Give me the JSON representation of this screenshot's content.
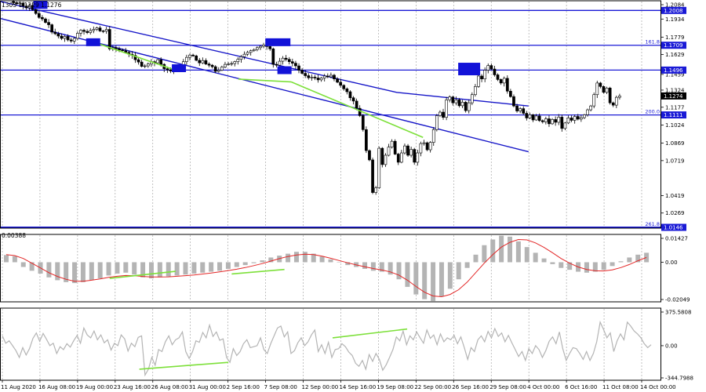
{
  "header": {
    "text": "1305 1.1229 1.1276"
  },
  "colors": {
    "level": "#1a1ad6",
    "channel": "#1616c8",
    "marker": "#1212d8",
    "divergence": "#7de03a",
    "signal": "#e32626",
    "histogram": "#b4b4b4",
    "cci": "#b4b4b4",
    "grid": "#9a9a9a",
    "candle": "#000000"
  },
  "chart_data": [
    {
      "type": "candlestick",
      "name": "price",
      "ylim": [
        1.0146,
        1.2084
      ],
      "y_ticks": [
        "1.2084",
        "1.2008",
        "1.1934",
        "1.1779",
        "1.1629",
        "1.1459",
        "1.1324",
        "1.1177",
        "1.1024",
        "1.0869",
        "1.0719",
        "1.0419",
        "1.0269"
      ],
      "x_ticks": [
        "11 Aug 2020",
        "16 Aug 08:00",
        "19 Aug 00:00",
        "23 Aug 16:00",
        "26 Aug 08:00",
        "31 Aug 00:00",
        "2 Sep 16:00",
        "7 Sep 08:00",
        "12 Sep 00:00",
        "14 Sep 16:00",
        "19 Sep 08:00",
        "22 Sep 00:00",
        "26 Sep 16:00",
        "29 Sep 08:00",
        "4 Oct 00:00",
        "6 Oct 16:00",
        "11 Oct 08:00",
        "14 Oct 00:00"
      ],
      "current_price": "1.1274",
      "levels": [
        {
          "value": 1.2008,
          "label": "1.2008",
          "fib": ""
        },
        {
          "value": 1.1709,
          "label": "1.1709",
          "fib": "161.8"
        },
        {
          "value": 1.1496,
          "label": "1.1496",
          "fib": ""
        },
        {
          "value": 1.1111,
          "label": "1.1111",
          "fib": "200.0"
        },
        {
          "value": 1.0146,
          "label": "1.0146",
          "fib": "261.8"
        }
      ],
      "path": [
        1.2084,
        1.2075,
        1.2065,
        1.2072,
        1.2045,
        1.203,
        1.2052,
        1.2015,
        1.1982,
        1.1948,
        1.1935,
        1.1905,
        1.1885,
        1.1822,
        1.1808,
        1.1788,
        1.1768,
        1.1785,
        1.1755,
        1.1745,
        1.1768,
        1.1812,
        1.1838,
        1.1828,
        1.1818,
        1.1835,
        1.1845,
        1.1858,
        1.1832,
        1.183,
        1.1845,
        1.1678,
        1.1688,
        1.1678,
        1.1668,
        1.1662,
        1.1648,
        1.1632,
        1.1622,
        1.1585,
        1.1565,
        1.1528,
        1.1532,
        1.1548,
        1.1568,
        1.1558,
        1.1585,
        1.1545,
        1.1508,
        1.1498,
        1.1488,
        1.1502,
        1.1515,
        1.1532,
        1.1568,
        1.1605,
        1.1625,
        1.1618,
        1.158,
        1.1558,
        1.1578,
        1.1548,
        1.1538,
        1.1525,
        1.1485,
        1.1495,
        1.1522,
        1.1545,
        1.1548,
        1.1552,
        1.1568,
        1.1588,
        1.161,
        1.1632,
        1.1648,
        1.1662,
        1.1672,
        1.1688,
        1.17,
        1.1712,
        1.1698,
        1.1678,
        1.1545,
        1.1538,
        1.1572,
        1.1598,
        1.1588,
        1.1568,
        1.1555,
        1.1532,
        1.1495,
        1.1468,
        1.1448,
        1.143,
        1.1435,
        1.1428,
        1.1412,
        1.1428,
        1.1445,
        1.1438,
        1.1452,
        1.142,
        1.1392,
        1.1365,
        1.1335,
        1.131,
        1.1258,
        1.123,
        1.1168,
        1.1105,
        1.0985,
        1.0805,
        1.0725,
        1.0445,
        1.0485,
        1.0825,
        1.0685,
        1.0765,
        1.0835,
        1.0885,
        1.0775,
        1.0705,
        1.0785,
        1.0845,
        1.0765,
        1.0815,
        1.0705,
        1.0785,
        1.0865,
        1.0872,
        1.0812,
        1.0875,
        1.0985,
        1.1105,
        1.1135,
        1.109,
        1.124,
        1.1265,
        1.1215,
        1.124,
        1.119,
        1.122,
        1.1148,
        1.1215,
        1.1285,
        1.1355,
        1.1445,
        1.142,
        1.1495,
        1.1535,
        1.1505,
        1.1455,
        1.1415,
        1.1385,
        1.1425,
        1.1315,
        1.1268,
        1.1188,
        1.1145,
        1.1165,
        1.1125,
        1.1085,
        1.1112,
        1.1068,
        1.1102,
        1.1062,
        1.1052,
        1.1078,
        1.1035,
        1.1072,
        1.1048,
        1.1092,
        1.0995,
        1.1042,
        1.1085,
        1.1065,
        1.1098,
        1.1075,
        1.1088,
        1.1112,
        1.1155,
        1.1188,
        1.1285,
        1.1385,
        1.1355,
        1.1305,
        1.1342,
        1.1215,
        1.1195,
        1.1262,
        1.1274
      ],
      "channel_upper": [
        [
          1.2084,
          0.0
        ],
        [
          1.1305,
          0.6
        ],
        [
          1.1188,
          0.8
        ]
      ],
      "channel_lower": [
        [
          1.1938,
          0.0
        ],
        [
          1.0795,
          0.8
        ]
      ],
      "divergence_price": [
        [
          1.1738,
          0.14
        ],
        [
          1.1485,
          0.27
        ],
        [
          1.1418,
          0.36
        ],
        [
          1.1395,
          0.44
        ],
        [
          1.0918,
          0.64
        ]
      ],
      "markers": [
        [
          1.2055,
          0.06
        ],
        [
          1.1735,
          0.14
        ],
        [
          1.1512,
          0.27
        ],
        [
          1.1735,
          0.42
        ],
        [
          1.1495,
          0.43
        ],
        [
          1.1505,
          0.71
        ]
      ]
    },
    {
      "type": "bar",
      "name": "macd",
      "ylim": [
        -0.02049,
        0.01427
      ],
      "y_ticks": [
        "0.01427",
        "0.00",
        "-0.02049"
      ],
      "value_readout": "0.00388",
      "histogram": [
        0.0038,
        0.0032,
        -0.0025,
        -0.0045,
        -0.006,
        -0.008,
        -0.0095,
        -0.0105,
        -0.011,
        -0.0105,
        -0.0095,
        -0.0085,
        -0.007,
        -0.006,
        -0.0055,
        -0.0065,
        -0.008,
        -0.0085,
        -0.008,
        -0.0075,
        -0.007,
        -0.0065,
        -0.006,
        -0.0055,
        -0.005,
        -0.0045,
        -0.0035,
        -0.0025,
        -0.0015,
        -0.0005,
        0.001,
        0.0025,
        0.0035,
        0.0045,
        0.0055,
        0.0055,
        0.0045,
        0.003,
        0.0015,
        0.0,
        -0.0015,
        -0.0025,
        -0.0035,
        -0.0045,
        -0.005,
        -0.0065,
        -0.009,
        -0.013,
        -0.017,
        -0.0195,
        -0.0205,
        -0.018,
        -0.014,
        -0.009,
        -0.003,
        0.004,
        0.009,
        0.012,
        0.014,
        0.0135,
        0.011,
        0.008,
        0.005,
        0.002,
        -0.001,
        -0.003,
        -0.004,
        -0.005,
        -0.0055,
        -0.005,
        -0.004,
        -0.002,
        0.0005,
        0.0025,
        0.004,
        0.005
      ],
      "signal": [
        0.004,
        0.0035,
        0.002,
        -0.0005,
        -0.003,
        -0.0055,
        -0.0075,
        -0.009,
        -0.01,
        -0.01,
        -0.0095,
        -0.0088,
        -0.008,
        -0.0074,
        -0.007,
        -0.0071,
        -0.0075,
        -0.0078,
        -0.0078,
        -0.0077,
        -0.0074,
        -0.0071,
        -0.0067,
        -0.0062,
        -0.0057,
        -0.0051,
        -0.0044,
        -0.0037,
        -0.0028,
        -0.0018,
        -0.0007,
        0.0006,
        0.0019,
        0.003,
        0.0038,
        0.0042,
        0.004,
        0.0032,
        0.0021,
        0.0009,
        -0.0003,
        -0.0014,
        -0.0024,
        -0.0033,
        -0.0041,
        -0.0051,
        -0.0068,
        -0.0095,
        -0.0128,
        -0.0158,
        -0.0178,
        -0.0182,
        -0.017,
        -0.0145,
        -0.0105,
        -0.0055,
        -0.0005,
        0.004,
        0.008,
        0.0105,
        0.012,
        0.0118,
        0.0102,
        0.0078,
        0.005,
        0.002,
        -0.0005,
        -0.0025,
        -0.0038,
        -0.0045,
        -0.0046,
        -0.004,
        -0.0028,
        -0.0012,
        0.0008,
        0.0025
      ],
      "divergence": [
        [
          -0.0085,
          0.165
        ],
        [
          -0.0048,
          0.265
        ],
        [
          -0.0062,
          0.35
        ],
        [
          -0.0038,
          0.43
        ]
      ]
    },
    {
      "type": "line",
      "name": "cci",
      "ylim": [
        -344.7988,
        375.5808
      ],
      "y_ticks": [
        "375.5808",
        "0.00",
        "-344.7988"
      ],
      "values": [
        100,
        25,
        50,
        0,
        -50,
        -120,
        -20,
        -95,
        -30,
        75,
        130,
        45,
        125,
        65,
        0,
        25,
        -80,
        -10,
        -40,
        20,
        -15,
        50,
        105,
        25,
        180,
        110,
        80,
        150,
        60,
        110,
        30,
        60,
        -45,
        25,
        0,
        110,
        70,
        -55,
        25,
        -10,
        85,
        100,
        -300,
        -240,
        -120,
        -200,
        -40,
        -60,
        40,
        100,
        10,
        60,
        80,
        140,
        -60,
        -130,
        -60,
        50,
        35,
        135,
        80,
        210,
        95,
        140,
        55,
        70,
        -120,
        -170,
        -30,
        -100,
        -60,
        20,
        60,
        -20,
        -10,
        0,
        80,
        -40,
        -80,
        20,
        100,
        180,
        200,
        90,
        140,
        -80,
        -50,
        30,
        80,
        0,
        40,
        110,
        160,
        -60,
        10,
        -80,
        35,
        -120,
        -40,
        -30,
        20,
        -10,
        -65,
        -100,
        -180,
        -210,
        -150,
        -240,
        -90,
        -160,
        -80,
        -140,
        -250,
        -195,
        -120,
        -40,
        90,
        50,
        150,
        10,
        100,
        60,
        140,
        80,
        25,
        160,
        75,
        110,
        10,
        120,
        40,
        80,
        60,
        105,
        20,
        90,
        -20,
        -140,
        -20,
        -60,
        60,
        100,
        40,
        145,
        80,
        175,
        95,
        130,
        40,
        105,
        30,
        -40,
        -110,
        -60,
        -150,
        -30,
        -80,
        0,
        -40,
        -120,
        -50,
        45,
        90,
        20,
        140,
        -30,
        -150,
        -80,
        -20,
        -30,
        -80,
        -140,
        -60,
        -150,
        -80,
        40,
        240,
        165,
        80,
        130,
        -60,
        50,
        120,
        60,
        240,
        200,
        150,
        120,
        80,
        20,
        -20,
        10
      ],
      "divergence": [
        [
          -240,
          0.21
        ],
        [
          -170,
          0.345
        ],
        [
          80,
          0.503
        ],
        [
          170,
          0.616
        ]
      ]
    }
  ]
}
